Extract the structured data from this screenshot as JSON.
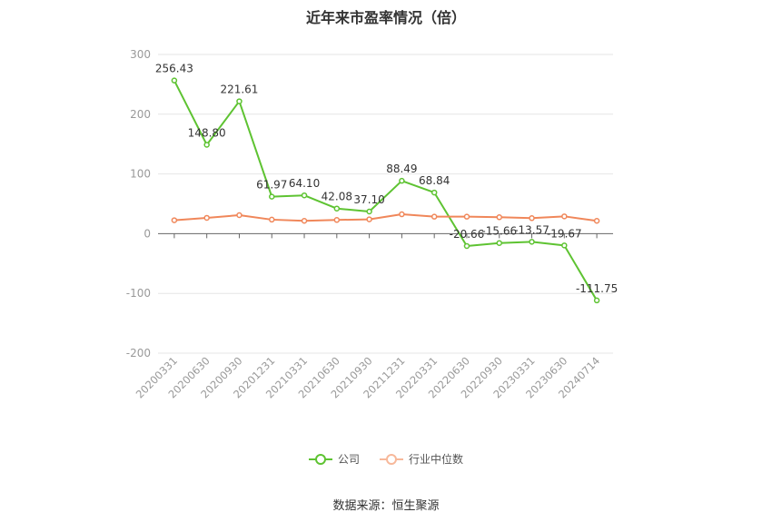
{
  "chart_data": {
    "type": "line",
    "title": "近年来市盈率情况（倍）",
    "categories": [
      "20200331",
      "20200630",
      "20200930",
      "20201231",
      "20210331",
      "20210630",
      "20210930",
      "20211231",
      "20220331",
      "20220630",
      "20220930",
      "20230331",
      "20230630",
      "20240714"
    ],
    "series": [
      {
        "name": "公司",
        "color": "#5ec332",
        "values": [
          256.43,
          148.8,
          221.61,
          61.97,
          64.1,
          42.08,
          37.1,
          88.49,
          68.84,
          -20.66,
          -15.66,
          -13.57,
          -19.67,
          -111.75
        ],
        "labels": [
          "256.43",
          "148.80",
          "221.61",
          "61.97",
          "64.10",
          "42.08",
          "37.10",
          "88.49",
          "68.84",
          "-20.66",
          "-15.66",
          "-13.57",
          "-19.67",
          "-111.75"
        ]
      },
      {
        "name": "行业中位数",
        "color": "#f0875a",
        "values": [
          22.5,
          26.5,
          31.0,
          23.5,
          21.5,
          23.0,
          24.0,
          32.5,
          28.5,
          28.5,
          27.5,
          26.0,
          29.0,
          21.5
        ]
      }
    ],
    "yticks": [
      "300",
      "200",
      "100",
      "0",
      "-100",
      "-200"
    ],
    "ylim": [
      -200,
      300
    ],
    "grid": true,
    "legend_position": "bottom"
  },
  "source": "数据来源：恒生聚源"
}
